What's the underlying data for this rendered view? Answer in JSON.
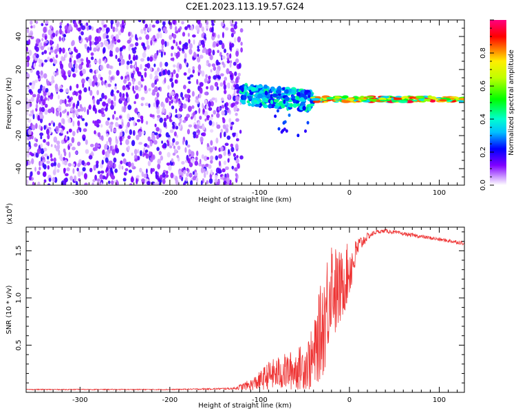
{
  "title": "C2E1.2023.113.19.57.G24",
  "colors": {
    "spectrogram_scatter": "#6a2bff",
    "snr_line": "#ee3333",
    "axis": "#000000"
  },
  "chart_data": [
    {
      "type": "heatmap",
      "name": "spectrogram",
      "xlabel": "Height of straight line (km)",
      "ylabel": "Frequency (Hz)",
      "xlim": [
        -360,
        128
      ],
      "ylim": [
        -50,
        50
      ],
      "xticks": [
        -300,
        -200,
        -100,
        0,
        100
      ],
      "xtick_labels": [
        "-300",
        "-200",
        "-100",
        "0",
        "100"
      ],
      "yticks": [
        -40,
        -20,
        0,
        20,
        40
      ],
      "ytick_labels": [
        "-40",
        "-20",
        "0",
        "20",
        "40"
      ],
      "colorbar": {
        "label": "Normalized spectral amplitude",
        "range": [
          0,
          1
        ],
        "ticks": [
          0.0,
          0.2,
          0.4,
          0.6,
          0.8
        ],
        "tick_labels": [
          "0.0",
          "0.2",
          "0.4",
          "0.6",
          "0.8"
        ],
        "colormap": "hsv-rainbow (white → violet → blue → cyan → green → yellow → red → magenta)"
      },
      "regions": [
        {
          "x_range": [
            -360,
            -120
          ],
          "freq_range": [
            -50,
            50
          ],
          "description": "broadband noise, low amplitude (0.05–0.2)"
        },
        {
          "x_range": [
            -120,
            -40
          ],
          "freq_center": 5,
          "freq_spread": 6,
          "amplitude": [
            0.2,
            0.45
          ]
        },
        {
          "x_range": [
            -40,
            128
          ],
          "freq_center": 2,
          "freq_spread": 1.5,
          "amplitude": [
            0.3,
            0.95
          ]
        }
      ],
      "grid": false
    },
    {
      "type": "line",
      "name": "snr",
      "xlabel": "Height of straight line (km)",
      "ylabel": "SNR (10 * v/v)",
      "ylabel_multiplier": "(x10",
      "ylabel_multiplier_exponent": "4",
      "xlim": [
        -360,
        128
      ],
      "ylim": [
        0,
        1.75
      ],
      "xticks": [
        -300,
        -200,
        -100,
        0,
        100
      ],
      "xtick_labels": [
        "-300",
        "-200",
        "-100",
        "0",
        "100"
      ],
      "yticks": [
        0.5,
        1.0,
        1.5
      ],
      "ytick_labels": [
        "0.5",
        "1.0",
        "1.5"
      ],
      "series": [
        {
          "x": [
            -360,
            -300,
            -200,
            -130,
            -110,
            -100,
            -90,
            -80,
            -70,
            -60,
            -50,
            -40,
            -35,
            -30,
            -25,
            -20,
            -15,
            -10,
            -5,
            0,
            5,
            10,
            20,
            30,
            40,
            60,
            80,
            100,
            128
          ],
          "y": [
            0.03,
            0.03,
            0.03,
            0.04,
            0.08,
            0.12,
            0.18,
            0.2,
            0.22,
            0.24,
            0.28,
            0.35,
            0.55,
            0.7,
            0.9,
            1.2,
            1.05,
            1.1,
            1.2,
            1.3,
            1.4,
            1.55,
            1.65,
            1.7,
            1.71,
            1.68,
            1.65,
            1.62,
            1.58
          ],
          "noise_amplitude": [
            0.005,
            0.005,
            0.005,
            0.01,
            0.06,
            0.1,
            0.15,
            0.18,
            0.2,
            0.22,
            0.25,
            0.35,
            0.45,
            0.55,
            0.6,
            0.5,
            0.5,
            0.4,
            0.35,
            0.3,
            0.2,
            0.1,
            0.04,
            0.02,
            0.02,
            0.02,
            0.02,
            0.02,
            0.02
          ]
        }
      ],
      "grid": false
    }
  ]
}
